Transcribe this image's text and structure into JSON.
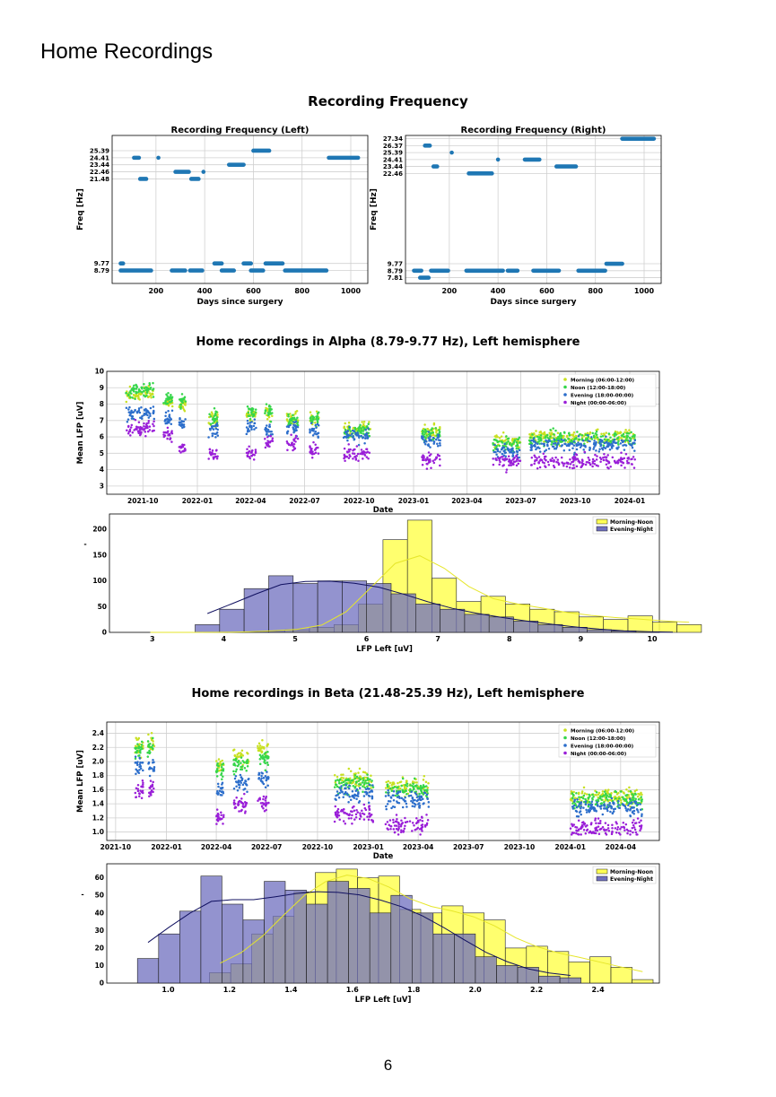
{
  "page": {
    "title": "Home Recordings",
    "page_number": "6"
  },
  "sections": {
    "frequency_title": "Recording Frequency",
    "alpha_title": "Home recordings in Alpha (8.79-9.77 Hz), Left hemisphere",
    "beta_title": "Home recordings in Beta (21.48-25.39 Hz), Left hemisphere"
  },
  "chart_data": [
    {
      "id": "freq-left",
      "type": "scatter",
      "title": "Recording Frequency (Left)",
      "xlabel": "Days since surgery",
      "ylabel": "Freq [Hz]",
      "xlim": [
        20,
        1070
      ],
      "ylim": [
        7.0,
        27.5
      ],
      "xticks": [
        200,
        400,
        600,
        800,
        1000
      ],
      "yticks": [
        8.79,
        9.77,
        21.48,
        22.46,
        23.44,
        24.41,
        25.39
      ],
      "ytick_labels": [
        "8.79",
        "9.77",
        "21.48",
        "22.46",
        "23.44",
        "24.41",
        "25.39"
      ],
      "grid": true,
      "color": "#1f77b4",
      "segments": [
        {
          "y": 9.77,
          "x": [
            55,
            65
          ]
        },
        {
          "y": 8.79,
          "x": [
            55,
            180
          ]
        },
        {
          "y": 24.41,
          "x": [
            110,
            130
          ]
        },
        {
          "y": 21.48,
          "x": [
            135,
            160
          ]
        },
        {
          "y": 24.41,
          "x": [
            210,
            210
          ]
        },
        {
          "y": 8.79,
          "x": [
            265,
            320
          ]
        },
        {
          "y": 22.46,
          "x": [
            280,
            335
          ]
        },
        {
          "y": 8.79,
          "x": [
            340,
            390
          ]
        },
        {
          "y": 21.48,
          "x": [
            345,
            375
          ]
        },
        {
          "y": 22.46,
          "x": [
            395,
            395
          ]
        },
        {
          "y": 9.77,
          "x": [
            440,
            470
          ]
        },
        {
          "y": 8.79,
          "x": [
            470,
            520
          ]
        },
        {
          "y": 23.44,
          "x": [
            500,
            560
          ]
        },
        {
          "y": 9.77,
          "x": [
            560,
            590
          ]
        },
        {
          "y": 8.79,
          "x": [
            590,
            640
          ]
        },
        {
          "y": 25.39,
          "x": [
            600,
            665
          ]
        },
        {
          "y": 9.77,
          "x": [
            650,
            720
          ]
        },
        {
          "y": 8.79,
          "x": [
            730,
            900
          ]
        },
        {
          "y": 24.41,
          "x": [
            910,
            1030
          ]
        }
      ]
    },
    {
      "id": "freq-right",
      "type": "scatter",
      "title": "Recording Frequency (Right)",
      "xlabel": "Days since surgery",
      "ylabel": "Freq [Hz]",
      "xlim": [
        20,
        1070
      ],
      "ylim": [
        7.0,
        27.8
      ],
      "xticks": [
        200,
        400,
        600,
        800,
        1000
      ],
      "yticks": [
        7.81,
        8.79,
        9.77,
        22.46,
        23.44,
        24.41,
        25.39,
        26.37,
        27.34
      ],
      "ytick_labels": [
        "7.81",
        "8.79",
        "9.77",
        "22.46",
        "23.44",
        "24.41",
        "25.39",
        "26.37",
        "27.34"
      ],
      "grid": true,
      "color": "#1f77b4",
      "segments": [
        {
          "y": 8.79,
          "x": [
            55,
            85
          ]
        },
        {
          "y": 7.81,
          "x": [
            80,
            115
          ]
        },
        {
          "y": 26.37,
          "x": [
            100,
            120
          ]
        },
        {
          "y": 8.79,
          "x": [
            125,
            195
          ]
        },
        {
          "y": 23.44,
          "x": [
            135,
            150
          ]
        },
        {
          "y": 25.39,
          "x": [
            210,
            210
          ]
        },
        {
          "y": 8.79,
          "x": [
            270,
            420
          ]
        },
        {
          "y": 22.46,
          "x": [
            280,
            375
          ]
        },
        {
          "y": 24.41,
          "x": [
            400,
            400
          ]
        },
        {
          "y": 8.79,
          "x": [
            440,
            480
          ]
        },
        {
          "y": 24.41,
          "x": [
            510,
            570
          ]
        },
        {
          "y": 8.79,
          "x": [
            545,
            650
          ]
        },
        {
          "y": 23.44,
          "x": [
            640,
            720
          ]
        },
        {
          "y": 8.79,
          "x": [
            730,
            840
          ]
        },
        {
          "y": 9.77,
          "x": [
            845,
            910
          ]
        },
        {
          "y": 27.34,
          "x": [
            910,
            1040
          ]
        }
      ]
    },
    {
      "id": "alpha-time",
      "type": "scatter",
      "xlabel": "Date",
      "ylabel": "Mean LFP [uV]",
      "xlim": [
        "2021-08-01",
        "2024-02-20"
      ],
      "ylim": [
        2.5,
        10.0
      ],
      "xticks": [
        "2021-10-01",
        "2022-01-01",
        "2022-04-01",
        "2022-07-01",
        "2022-10-01",
        "2023-01-01",
        "2023-04-01",
        "2023-07-01",
        "2023-10-01",
        "2024-01-01"
      ],
      "xtick_labels": [
        "2021-10",
        "2022-01",
        "2022-04",
        "2022-07",
        "2022-10",
        "2023-01",
        "2023-04",
        "2023-07",
        "2023-10",
        "2024-01"
      ],
      "yticks": [
        3,
        4,
        5,
        6,
        7,
        8,
        9,
        10
      ],
      "grid": true,
      "legend_position": "top-right",
      "series": [
        {
          "name": "Morning (06:00-12:00)",
          "color": "#c8e020"
        },
        {
          "name": "Noon (12:00-18:00)",
          "color": "#35d64a"
        },
        {
          "name": "Evening (18:00-00:00)",
          "color": "#2c6ecb"
        },
        {
          "name": "Night (00:00-06:00)",
          "color": "#9a1fd8"
        }
      ],
      "clusters": [
        {
          "start": "2021-09-01",
          "end": "2021-09-30",
          "levels": [
            8.6,
            8.8,
            7.4,
            6.4
          ]
        },
        {
          "start": "2021-10-02",
          "end": "2021-10-20",
          "levels": [
            8.7,
            8.9,
            7.5,
            6.6
          ]
        },
        {
          "start": "2021-11-05",
          "end": "2021-11-20",
          "levels": [
            8.1,
            8.3,
            7.1,
            6.1
          ]
        },
        {
          "start": "2021-12-01",
          "end": "2021-12-12",
          "levels": [
            8.0,
            8.2,
            6.8,
            5.2
          ]
        },
        {
          "start": "2022-01-20",
          "end": "2022-02-05",
          "levels": [
            7.1,
            7.2,
            6.4,
            4.9
          ]
        },
        {
          "start": "2022-03-25",
          "end": "2022-04-10",
          "levels": [
            7.3,
            7.5,
            6.6,
            5.0
          ]
        },
        {
          "start": "2022-04-25",
          "end": "2022-05-08",
          "levels": [
            7.4,
            7.5,
            6.5,
            5.6
          ]
        },
        {
          "start": "2022-06-01",
          "end": "2022-06-20",
          "levels": [
            7.2,
            7.0,
            6.6,
            5.6
          ]
        },
        {
          "start": "2022-07-10",
          "end": "2022-07-25",
          "levels": [
            7.1,
            7.0,
            6.4,
            5.2
          ]
        },
        {
          "start": "2022-09-05",
          "end": "2022-10-20",
          "levels": [
            6.5,
            6.4,
            6.1,
            5.0
          ]
        },
        {
          "start": "2023-01-15",
          "end": "2023-02-15",
          "levels": [
            6.3,
            6.1,
            5.8,
            4.6
          ]
        },
        {
          "start": "2023-05-15",
          "end": "2023-07-01",
          "levels": [
            5.7,
            5.6,
            5.1,
            4.5
          ]
        },
        {
          "start": "2023-07-15",
          "end": "2024-01-10",
          "levels": [
            6.0,
            5.9,
            5.5,
            4.5
          ]
        }
      ]
    },
    {
      "id": "alpha-hist",
      "type": "bar",
      "xlabel": "LFP Left [uV]",
      "ylabel": "-",
      "xlim": [
        2.4,
        10.1
      ],
      "ylim": [
        0,
        230
      ],
      "xticks": [
        3,
        4,
        5,
        6,
        7,
        8,
        9,
        10
      ],
      "yticks": [
        0,
        50,
        100,
        150,
        200
      ],
      "bin_width": 0.343,
      "legend_position": "top-right",
      "series": [
        {
          "name": "Morning-Noon",
          "color": "#ffff55",
          "edges_start": 2.8,
          "values": [
            0,
            0,
            0,
            0,
            0,
            2,
            5,
            10,
            15,
            55,
            180,
            218,
            105,
            60,
            70,
            55,
            45,
            40,
            30,
            25,
            32,
            20,
            15
          ]
        },
        {
          "name": "Evening-Night",
          "color": "#6f6fbf",
          "edges_start": 3.6,
          "values": [
            15,
            45,
            85,
            110,
            95,
            100,
            100,
            95,
            75,
            55,
            45,
            35,
            30,
            22,
            15,
            10,
            5,
            3,
            0,
            0
          ]
        }
      ]
    },
    {
      "id": "beta-time",
      "type": "scatter",
      "xlabel": "Date",
      "ylabel": "Mean LFP [uV]",
      "xlim": [
        "2021-09-15",
        "2024-06-10"
      ],
      "ylim": [
        0.88,
        2.56
      ],
      "xticks": [
        "2021-10-01",
        "2022-01-01",
        "2022-04-01",
        "2022-07-01",
        "2022-10-01",
        "2023-01-01",
        "2023-04-01",
        "2023-07-01",
        "2023-10-01",
        "2024-01-01",
        "2024-04-01"
      ],
      "xtick_labels": [
        "2021-10",
        "2022-01",
        "2022-04",
        "2022-07",
        "2022-10",
        "2023-01",
        "2023-04",
        "2023-07",
        "2023-10",
        "2024-01",
        "2024-04"
      ],
      "yticks": [
        1.0,
        1.2,
        1.4,
        1.6,
        1.8,
        2.0,
        2.2,
        2.4
      ],
      "ytick_labels": [
        "1.0",
        "1.2",
        "1.4",
        "1.6",
        "1.8",
        "2.0",
        "2.2",
        "2.4"
      ],
      "grid": true,
      "legend_position": "top-right",
      "series": [
        {
          "name": "Morning (06:00-12:00)",
          "color": "#c8e020"
        },
        {
          "name": "Noon (12:00-18:00)",
          "color": "#35d64a"
        },
        {
          "name": "Evening (18:00-00:00)",
          "color": "#2c6ecb"
        },
        {
          "name": "Night (00:00-06:00)",
          "color": "#9a1fd8"
        }
      ],
      "clusters": [
        {
          "start": "2021-11-05",
          "end": "2021-11-20",
          "levels": [
            2.2,
            2.15,
            1.95,
            1.6
          ]
        },
        {
          "start": "2021-11-28",
          "end": "2021-12-10",
          "levels": [
            2.25,
            2.2,
            1.95,
            1.6
          ]
        },
        {
          "start": "2022-04-01",
          "end": "2022-04-15",
          "levels": [
            1.95,
            1.9,
            1.6,
            1.2
          ]
        },
        {
          "start": "2022-05-01",
          "end": "2022-05-30",
          "levels": [
            2.05,
            1.95,
            1.7,
            1.4
          ]
        },
        {
          "start": "2022-06-15",
          "end": "2022-07-05",
          "levels": [
            2.15,
            2.05,
            1.75,
            1.4
          ]
        },
        {
          "start": "2022-11-01",
          "end": "2023-01-10",
          "levels": [
            1.75,
            1.7,
            1.55,
            1.25
          ]
        },
        {
          "start": "2023-02-01",
          "end": "2023-04-20",
          "levels": [
            1.65,
            1.6,
            1.45,
            1.1
          ]
        },
        {
          "start": "2024-01-01",
          "end": "2024-05-10",
          "levels": [
            1.5,
            1.45,
            1.35,
            1.05
          ]
        }
      ]
    },
    {
      "id": "beta-hist",
      "type": "bar",
      "xlabel": "LFP Left [uV]",
      "ylabel": "-",
      "xlim": [
        0.8,
        2.6
      ],
      "ylim": [
        0,
        68
      ],
      "xticks": [
        1.0,
        1.2,
        1.4,
        1.6,
        1.8,
        2.0,
        2.2,
        2.4
      ],
      "xtick_labels": [
        "1.0",
        "1.2",
        "1.4",
        "1.6",
        "1.8",
        "2.0",
        "2.2",
        "2.4"
      ],
      "yticks": [
        0,
        10,
        20,
        30,
        40,
        50,
        60
      ],
      "bin_width": 0.0688,
      "legend_position": "top-right",
      "series": [
        {
          "name": "Morning-Noon",
          "color": "#ffff55",
          "edges_start": 1.135,
          "values": [
            6,
            11,
            28,
            38,
            52,
            63,
            65,
            60,
            61,
            42,
            40,
            44,
            40,
            36,
            20,
            21,
            18,
            12,
            15,
            9,
            2
          ]
        },
        {
          "name": "Evening-Night",
          "color": "#6f6fbf",
          "edges_start": 0.9,
          "values": [
            14,
            28,
            41,
            61,
            45,
            36,
            58,
            53,
            45,
            58,
            54,
            40,
            50,
            40,
            28,
            28,
            15,
            10,
            9,
            4,
            3
          ]
        }
      ]
    }
  ]
}
